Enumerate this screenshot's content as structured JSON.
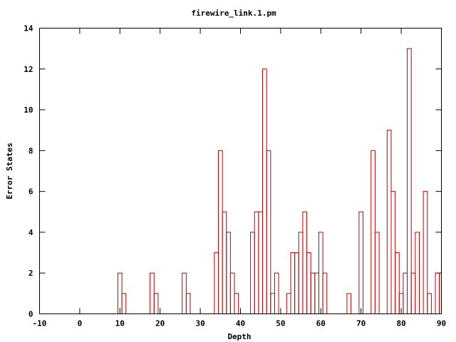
{
  "chart_data": {
    "type": "bar",
    "title": "firewire_link.1.pm",
    "xlabel": "Depth",
    "ylabel": "Error States",
    "xlim": [
      -10,
      90
    ],
    "ylim": [
      0,
      14
    ],
    "x_ticks": [
      -10,
      0,
      10,
      20,
      30,
      40,
      50,
      60,
      70,
      80,
      90
    ],
    "y_ticks": [
      0,
      2,
      4,
      6,
      8,
      10,
      12,
      14
    ],
    "bar_width": 1,
    "grid": false,
    "legend": "none",
    "series": [
      {
        "color": "#c00000",
        "points": [
          {
            "x": 10,
            "y": 2
          },
          {
            "x": 11,
            "y": 1
          },
          {
            "x": 18,
            "y": 2
          },
          {
            "x": 19,
            "y": 1
          },
          {
            "x": 26,
            "y": 2
          },
          {
            "x": 27,
            "y": 1
          },
          {
            "x": 34,
            "y": 3
          },
          {
            "x": 35,
            "y": 8
          },
          {
            "x": 36,
            "y": 5
          },
          {
            "x": 37,
            "y": 4
          },
          {
            "x": 38,
            "y": 2
          },
          {
            "x": 39,
            "y": 1
          },
          {
            "x": 43,
            "y": 4
          },
          {
            "x": 44,
            "y": 5
          },
          {
            "x": 45,
            "y": 5
          },
          {
            "x": 46,
            "y": 12
          },
          {
            "x": 47,
            "y": 8
          },
          {
            "x": 48,
            "y": 1
          },
          {
            "x": 49,
            "y": 2
          },
          {
            "x": 52,
            "y": 1
          },
          {
            "x": 53,
            "y": 3
          },
          {
            "x": 54,
            "y": 3
          },
          {
            "x": 55,
            "y": 4
          },
          {
            "x": 56,
            "y": 5
          },
          {
            "x": 57,
            "y": 3
          },
          {
            "x": 58,
            "y": 2
          },
          {
            "x": 59,
            "y": 2
          },
          {
            "x": 60,
            "y": 4
          },
          {
            "x": 61,
            "y": 2
          },
          {
            "x": 67,
            "y": 1
          },
          {
            "x": 70,
            "y": 5
          },
          {
            "x": 73,
            "y": 8
          },
          {
            "x": 74,
            "y": 4
          },
          {
            "x": 77,
            "y": 9
          },
          {
            "x": 78,
            "y": 6
          },
          {
            "x": 79,
            "y": 3
          },
          {
            "x": 80,
            "y": 1
          },
          {
            "x": 81,
            "y": 2
          },
          {
            "x": 82,
            "y": 13
          },
          {
            "x": 83,
            "y": 2
          },
          {
            "x": 84,
            "y": 4
          },
          {
            "x": 86,
            "y": 6
          },
          {
            "x": 87,
            "y": 1
          },
          {
            "x": 89,
            "y": 2
          },
          {
            "x": 90,
            "y": 2
          }
        ]
      }
    ]
  }
}
